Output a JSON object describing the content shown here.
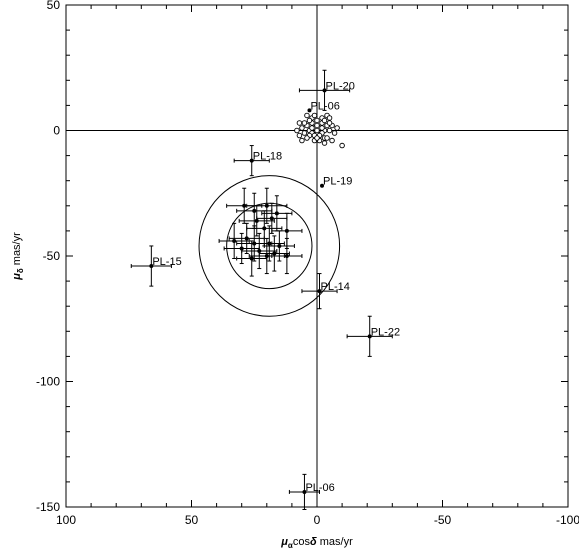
{
  "chart_data": {
    "type": "scatter",
    "title": "",
    "xlabel": "μαcosδ  mas/yr",
    "xlabel_parts": {
      "symbol": "μ",
      "subscript": "α",
      "mid": "cos",
      "delta": "δ",
      "unit": "  mas/yr"
    },
    "ylabel": "μδ  mas/yr",
    "ylabel_parts": {
      "symbol": "μ",
      "subscript": "δ",
      "unit": "  mas/yr"
    },
    "xlim": [
      100,
      -100
    ],
    "ylim": [
      -150,
      50
    ],
    "x_ticks": [
      100,
      50,
      0,
      -50,
      -100
    ],
    "x_tick_labels": [
      "100",
      "50",
      "0",
      "-50",
      "-100"
    ],
    "y_ticks": [
      50,
      0,
      -50,
      -100,
      -150
    ],
    "y_tick_labels": [
      "50",
      "0",
      "-50",
      "-100",
      "-150"
    ],
    "grid": false,
    "zero_lines": true,
    "circles": [
      {
        "center": [
          19,
          -46
        ],
        "radius": 28
      },
      {
        "center": [
          19,
          -46
        ],
        "radius": 17
      }
    ],
    "labeled_stars": [
      {
        "label": "PL-20",
        "x": -3,
        "y": 16,
        "xerr": 10,
        "yerr": 8
      },
      {
        "label": "PL-06",
        "x": 3,
        "y": 8,
        "xerr": 0,
        "yerr": 0
      },
      {
        "label": "PL-18",
        "x": 26,
        "y": -12,
        "xerr": 7,
        "yerr": 6
      },
      {
        "label": "PL-19",
        "x": -2,
        "y": -22,
        "xerr": 0,
        "yerr": 0
      },
      {
        "label": "PL-15",
        "x": 66,
        "y": -54,
        "xerr": 8,
        "yerr": 8
      },
      {
        "label": "PL-14",
        "x": -1,
        "y": -64,
        "xerr": 7,
        "yerr": 7
      },
      {
        "label": "PL-22",
        "x": -21,
        "y": -82,
        "xerr": 9,
        "yerr": 8
      },
      {
        "label": "PL-06",
        "x": 5,
        "y": -144,
        "xerr": 6,
        "yerr": 7
      }
    ],
    "filled_points": [
      {
        "x": 29,
        "y": -30,
        "xerr": 7,
        "yerr": 7
      },
      {
        "x": 25,
        "y": -32,
        "xerr": 7,
        "yerr": 7
      },
      {
        "x": 20,
        "y": -30,
        "xerr": 8,
        "yerr": 7
      },
      {
        "x": 16,
        "y": -33,
        "xerr": 6,
        "yerr": 7
      },
      {
        "x": 24,
        "y": -36,
        "xerr": 7,
        "yerr": 6
      },
      {
        "x": 18,
        "y": -35,
        "xerr": 6,
        "yerr": 6
      },
      {
        "x": 21,
        "y": -39,
        "xerr": 7,
        "yerr": 7
      },
      {
        "x": 12,
        "y": -40,
        "xerr": 6,
        "yerr": 7
      },
      {
        "x": 28,
        "y": -43,
        "xerr": 7,
        "yerr": 6
      },
      {
        "x": 33,
        "y": -44,
        "xerr": 6,
        "yerr": 7
      },
      {
        "x": 25,
        "y": -45,
        "xerr": 7,
        "yerr": 7
      },
      {
        "x": 19,
        "y": -45,
        "xerr": 6,
        "yerr": 7
      },
      {
        "x": 30,
        "y": -47,
        "xerr": 7,
        "yerr": 6
      },
      {
        "x": 23,
        "y": -48,
        "xerr": 7,
        "yerr": 7
      },
      {
        "x": 17,
        "y": -49,
        "xerr": 6,
        "yerr": 7
      },
      {
        "x": 12,
        "y": -50,
        "xerr": 6,
        "yerr": 7
      },
      {
        "x": 20,
        "y": -50,
        "xerr": 7,
        "yerr": 7
      },
      {
        "x": 26,
        "y": -51,
        "xerr": 6,
        "yerr": 7
      },
      {
        "x": 15,
        "y": -46,
        "xerr": 6,
        "yerr": 6
      }
    ],
    "open_points": [
      [
        0,
        4
      ],
      [
        2,
        3
      ],
      [
        -2,
        3
      ],
      [
        4,
        2
      ],
      [
        -4,
        2
      ],
      [
        1,
        1
      ],
      [
        -1,
        1
      ],
      [
        3,
        0
      ],
      [
        -3,
        0
      ],
      [
        0,
        -1
      ],
      [
        2,
        -1
      ],
      [
        -2,
        -1
      ],
      [
        5,
        -1
      ],
      [
        -5,
        0
      ],
      [
        1,
        -2
      ],
      [
        -1,
        -2
      ],
      [
        3,
        -2
      ],
      [
        -3,
        -3
      ],
      [
        6,
        1
      ],
      [
        -6,
        2
      ],
      [
        0,
        2
      ],
      [
        2,
        5
      ],
      [
        -2,
        5
      ],
      [
        4,
        -3
      ],
      [
        -4,
        -3
      ],
      [
        7,
        -2
      ],
      [
        -7,
        -1
      ],
      [
        1,
        -4
      ],
      [
        -1,
        -4
      ],
      [
        3,
        4
      ],
      [
        -3,
        4
      ],
      [
        5,
        3
      ],
      [
        -5,
        3
      ],
      [
        0,
        0
      ],
      [
        2,
        1
      ],
      [
        -2,
        1
      ],
      [
        6,
        -4
      ],
      [
        -6,
        -4
      ],
      [
        8,
        0
      ],
      [
        -8,
        1
      ],
      [
        -10,
        -6
      ],
      [
        -3,
        -5
      ],
      [
        4,
        6
      ],
      [
        -4,
        6
      ],
      [
        1,
        6
      ],
      [
        0,
        -3
      ],
      [
        -5,
        5
      ],
      [
        7,
        3
      ]
    ]
  }
}
